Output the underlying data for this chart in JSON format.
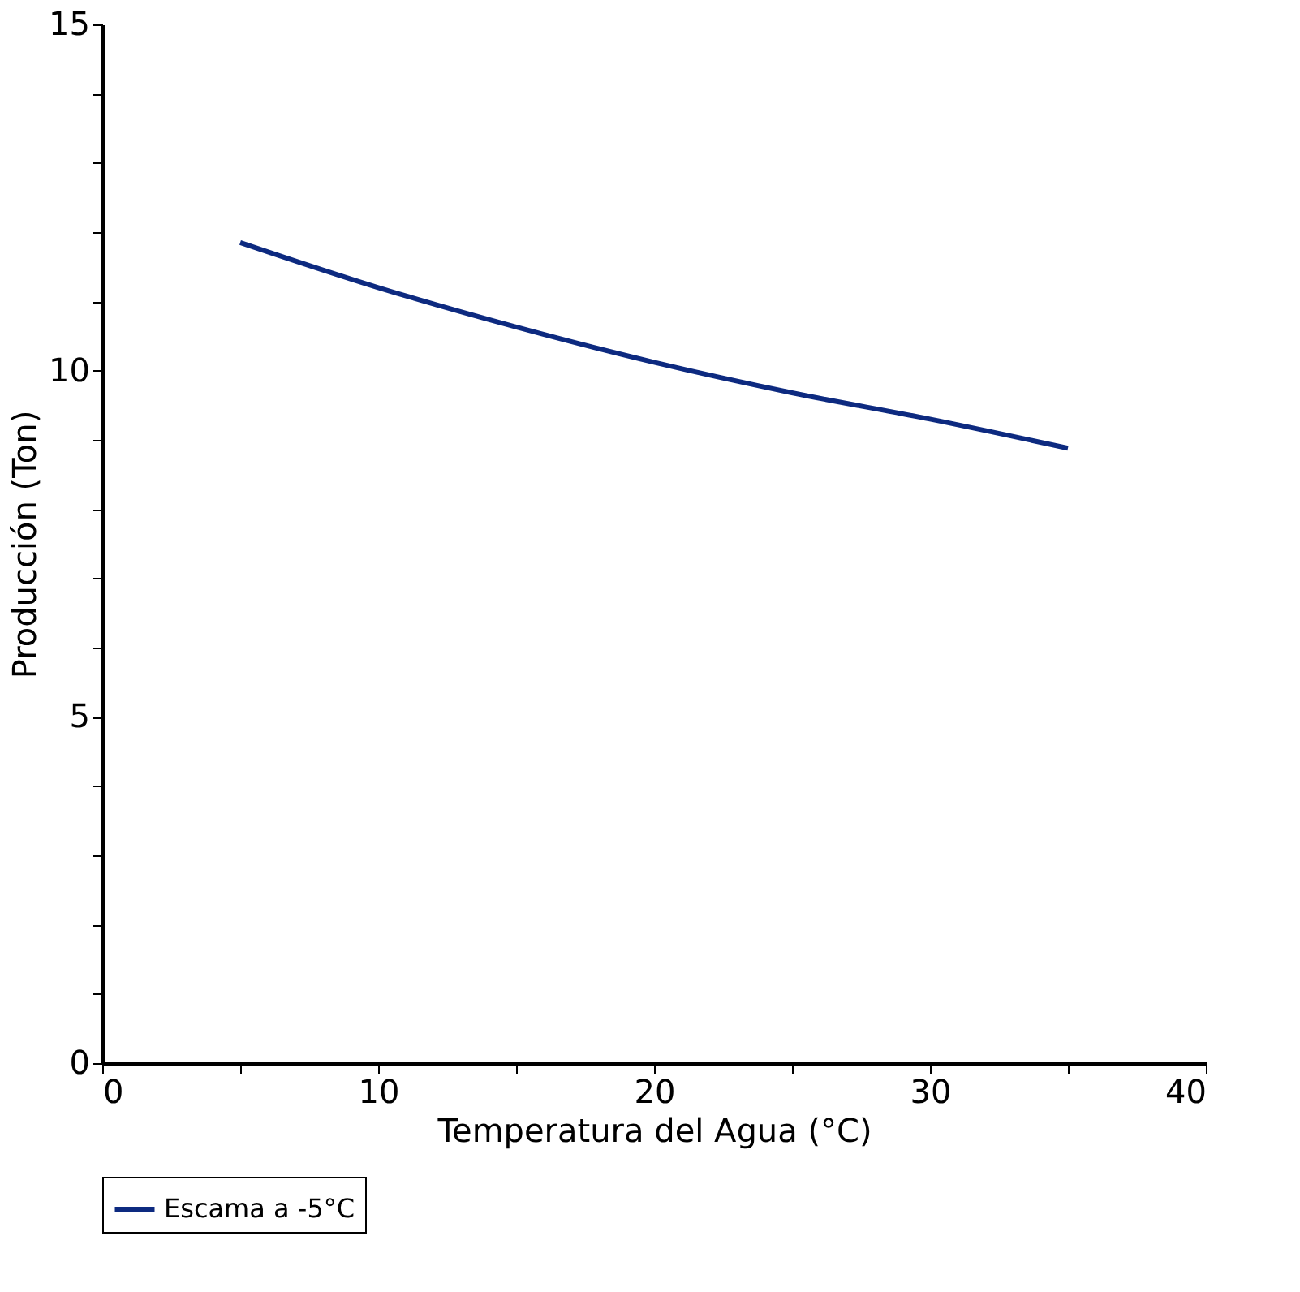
{
  "chart_data": {
    "type": "line",
    "xlabel": "Temperatura del Agua (°C)",
    "ylabel": "Producción (Ton)",
    "x": [
      5,
      10,
      15,
      20,
      25,
      30,
      35
    ],
    "series": [
      {
        "name": "Escama a -5°C",
        "color": "#0d2a80",
        "values": [
          11.85,
          11.2,
          10.63,
          10.12,
          9.68,
          9.3,
          8.88
        ]
      }
    ],
    "xlim": [
      0,
      40
    ],
    "ylim": [
      0,
      15
    ],
    "xticks": [
      0,
      {
        "value": 5,
        "label": null
      },
      10,
      {
        "value": 15,
        "label": null
      },
      20,
      {
        "value": 25,
        "label": null
      },
      30,
      {
        "value": 35,
        "label": null
      },
      40
    ],
    "yticks": [
      0,
      {
        "value": 1,
        "label": null
      },
      {
        "value": 2,
        "label": null
      },
      {
        "value": 3,
        "label": null
      },
      {
        "value": 4,
        "label": null
      },
      5,
      {
        "value": 6,
        "label": null
      },
      {
        "value": 7,
        "label": null
      },
      {
        "value": 8,
        "label": null
      },
      {
        "value": 9,
        "label": null
      },
      10,
      {
        "value": 11,
        "label": null
      },
      {
        "value": 12,
        "label": null
      },
      {
        "value": 13,
        "label": null
      },
      {
        "value": 14,
        "label": null
      },
      15
    ],
    "grid": false,
    "legend": "bottom",
    "marker": "none",
    "line_style": "solid"
  }
}
